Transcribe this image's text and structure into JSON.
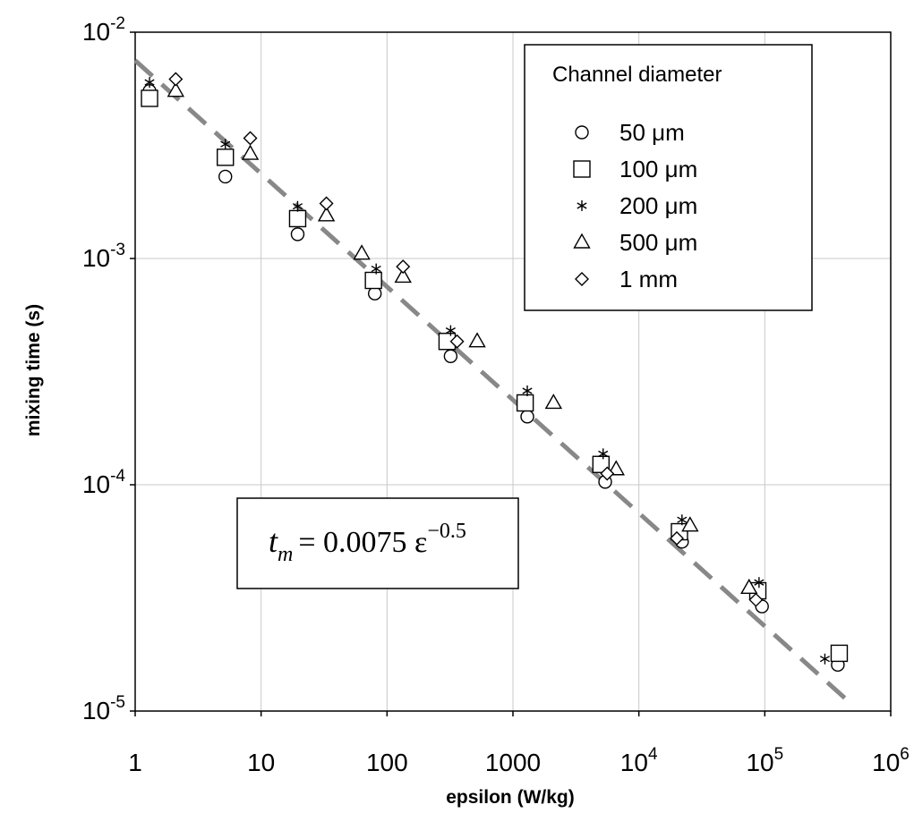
{
  "chart_data": {
    "type": "scatter",
    "title": "",
    "xlabel": "epsilon (W/kg)",
    "ylabel": "mixing time (s)",
    "xscale": "log",
    "yscale": "log",
    "xlim": [
      1,
      1000000
    ],
    "ylim": [
      1e-05,
      0.01
    ],
    "grid": true,
    "x_ticks": [
      {
        "value": 1,
        "base": "1",
        "exp": ""
      },
      {
        "value": 10,
        "base": "10",
        "exp": ""
      },
      {
        "value": 100,
        "base": "100",
        "exp": ""
      },
      {
        "value": 1000,
        "base": "1000",
        "exp": ""
      },
      {
        "value": 10000,
        "base": "10",
        "exp": "4"
      },
      {
        "value": 100000,
        "base": "10",
        "exp": "5"
      },
      {
        "value": 1000000,
        "base": "10",
        "exp": "6"
      }
    ],
    "y_ticks": [
      {
        "value": 0.01,
        "base": "10",
        "exp": "-2"
      },
      {
        "value": 0.001,
        "base": "10",
        "exp": "-3"
      },
      {
        "value": 0.0001,
        "base": "10",
        "exp": "-4"
      },
      {
        "value": 1e-05,
        "base": "10",
        "exp": "-5"
      }
    ],
    "legend": {
      "title": "Channel diameter",
      "position": "top-right"
    },
    "series": [
      {
        "name": "50 μm",
        "marker": "circle",
        "points": [
          [
            1.3,
            0.0055
          ],
          [
            5.2,
            0.0023
          ],
          [
            19.5,
            0.00128
          ],
          [
            80,
            0.0007
          ],
          [
            320,
            0.00037
          ],
          [
            1300,
            0.0002
          ],
          [
            5400,
            0.000103
          ],
          [
            22000,
            5.6e-05
          ],
          [
            95000,
            2.9e-05
          ],
          [
            380000,
            1.6e-05
          ]
        ]
      },
      {
        "name": "100 μm",
        "marker": "square",
        "points": [
          [
            1.3,
            0.0051
          ],
          [
            5.2,
            0.0028
          ],
          [
            19.5,
            0.0015
          ],
          [
            78,
            0.0008
          ],
          [
            300,
            0.00043
          ],
          [
            1250,
            0.00023
          ],
          [
            5000,
            0.000123
          ],
          [
            21000,
            6.2e-05
          ],
          [
            88000,
            3.4e-05
          ],
          [
            390000,
            1.8e-05
          ]
        ]
      },
      {
        "name": "200 μm",
        "marker": "asterisk",
        "points": [
          [
            1.3,
            0.006
          ],
          [
            5.2,
            0.0032
          ],
          [
            19.5,
            0.0017
          ],
          [
            82,
            0.0009
          ],
          [
            320,
            0.00048
          ],
          [
            1300,
            0.00026
          ],
          [
            5200,
            0.000137
          ],
          [
            22000,
            7e-05
          ],
          [
            90000,
            3.7e-05
          ],
          [
            300000,
            1.7e-05
          ]
        ]
      },
      {
        "name": "500 μm",
        "marker": "triangle",
        "points": [
          [
            2.1,
            0.0055
          ],
          [
            8.2,
            0.0029
          ],
          [
            33,
            0.00155
          ],
          [
            63,
            0.00105
          ],
          [
            134,
            0.00083
          ],
          [
            520,
            0.00043
          ],
          [
            2100,
            0.00023
          ],
          [
            6600,
            0.000117
          ],
          [
            25500,
            6.6e-05
          ],
          [
            75000,
            3.5e-05
          ]
        ]
      },
      {
        "name": "1 mm",
        "marker": "diamond",
        "points": [
          [
            2.1,
            0.0062
          ],
          [
            8.2,
            0.0034
          ],
          [
            33,
            0.00175
          ],
          [
            134,
            0.00092
          ],
          [
            360,
            0.00043
          ],
          [
            5600,
            0.000112
          ],
          [
            20000,
            5.8e-05
          ],
          [
            85000,
            3.1e-05
          ]
        ]
      }
    ],
    "fit": {
      "style": "dashed",
      "coefficient": 0.0075,
      "exponent": -0.5,
      "x_range": [
        1,
        500000
      ],
      "color": "#888888"
    },
    "equation": {
      "lhs": "t",
      "lhs_sub": "m",
      "rhs": "= 0.0075 ε",
      "rhs_sup": "−0.5"
    }
  }
}
